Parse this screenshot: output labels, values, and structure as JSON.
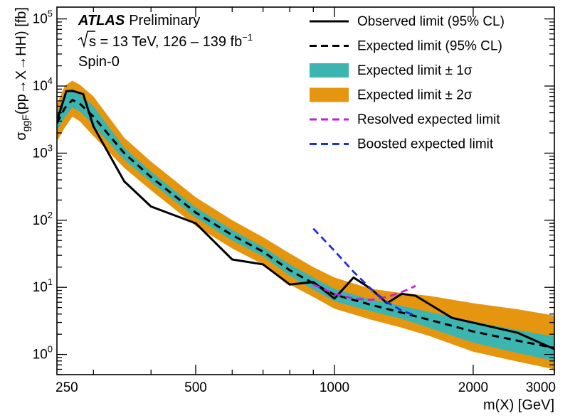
{
  "chart_data": {
    "type": "line",
    "xscale": "log",
    "yscale": "log",
    "xlim": [
      250,
      3000
    ],
    "ylim": [
      0.5,
      150000
    ],
    "xlabel": "m(X) [GeV]",
    "ylabel": "σggF(pp→X→HH) [fb]",
    "ylabel_parts": {
      "pre": "σ",
      "sub": "ggF",
      "post": "(pp→X→HH) [fb]"
    },
    "x_ticks": [
      250,
      500,
      1000,
      2000,
      3000
    ],
    "x_tick_labels": [
      "250",
      "500",
      "1000",
      "2000",
      "3000"
    ],
    "y_ticks": [
      1,
      10,
      100,
      1000,
      10000,
      100000
    ],
    "y_tick_labels": [
      {
        "base": "10",
        "exp": "0"
      },
      {
        "base": "10",
        "exp": "1"
      },
      {
        "base": "10",
        "exp": "2"
      },
      {
        "base": "10",
        "exp": "3"
      },
      {
        "base": "10",
        "exp": "4"
      },
      {
        "base": "10",
        "exp": "5"
      }
    ],
    "annotations": {
      "experiment": "ATLAS",
      "status": "Preliminary",
      "energy_text": "s = 13 TeV, 126 – 139 fb",
      "energy_sup": "−1",
      "model": "Spin-0"
    },
    "legend_position": "top-right",
    "legend": [
      {
        "label": "Observed limit (95% CL)",
        "style": "solid",
        "color": "#000000"
      },
      {
        "label": "Expected limit (95% CL)",
        "style": "dashed",
        "color": "#000000"
      },
      {
        "label": "Expected limit ± 1σ",
        "style": "band",
        "color": "#3cb4b0"
      },
      {
        "label": "Expected limit ± 2σ",
        "style": "band",
        "color": "#e5950e"
      },
      {
        "label": "Resolved expected limit",
        "style": "dashed",
        "color": "#c21fd9"
      },
      {
        "label": "Boosted expected limit",
        "style": "dashed",
        "color": "#1f2ee6"
      }
    ],
    "colors": {
      "band1": "#3cb4b0",
      "band2": "#e5950e",
      "observed": "#000000",
      "expected": "#000000",
      "resolved": "#c21fd9",
      "boosted": "#1f2ee6"
    },
    "band2": {
      "x": [
        250,
        260,
        270,
        280,
        300,
        350,
        400,
        500,
        600,
        700,
        800,
        900,
        1000,
        1200,
        1400,
        1600,
        2000,
        2500,
        3000
      ],
      "lo": [
        1500,
        2400,
        3500,
        3000,
        1800,
        600,
        280,
        82,
        38,
        22,
        11,
        7.2,
        4.8,
        3.3,
        2.5,
        1.9,
        1.1,
        0.78,
        0.6
      ],
      "hi": [
        5300,
        10000,
        12000,
        10500,
        7000,
        1700,
        750,
        220,
        100,
        56,
        32,
        20,
        14,
        9.5,
        8.2,
        7.5,
        5.8,
        4.7,
        3.8
      ]
    },
    "band1": {
      "x": [
        250,
        260,
        270,
        280,
        300,
        350,
        400,
        500,
        600,
        700,
        800,
        900,
        1000,
        1200,
        1400,
        1600,
        2000,
        2500,
        3000
      ],
      "lo": [
        2200,
        3400,
        4800,
        4200,
        2600,
        800,
        370,
        110,
        50,
        29,
        15,
        9.3,
        6.2,
        4.4,
        3.4,
        2.5,
        1.5,
        1.05,
        0.8
      ],
      "hi": [
        3800,
        7500,
        8500,
        7500,
        5000,
        1200,
        530,
        155,
        72,
        40,
        22,
        14,
        9.5,
        6.6,
        5.3,
        4.3,
        3.1,
        2.3,
        1.85
      ]
    },
    "series": [
      {
        "name": "Observed limit (95% CL)",
        "x": [
          250,
          262,
          270,
          285,
          300,
          350,
          400,
          500,
          600,
          700,
          800,
          900,
          1000,
          1100,
          1200,
          1300,
          1400,
          1500,
          1800,
          2500,
          3000
        ],
        "y": [
          3000,
          8400,
          8500,
          7600,
          2500,
          380,
          160,
          90,
          26,
          22,
          11,
          12,
          6.8,
          14,
          9.5,
          5.8,
          8,
          7.5,
          3.5,
          2.1,
          1.2
        ]
      },
      {
        "name": "Expected limit (95% CL)",
        "x": [
          250,
          260,
          270,
          280,
          300,
          350,
          400,
          500,
          600,
          700,
          800,
          900,
          1000,
          1200,
          1400,
          1600,
          2000,
          2500,
          3000
        ],
        "y": [
          2800,
          4700,
          6200,
          5500,
          3500,
          1000,
          440,
          130,
          60,
          34,
          18,
          11.5,
          7.8,
          5.5,
          4.2,
          3.3,
          2.2,
          1.6,
          1.25
        ]
      },
      {
        "name": "Resolved expected limit",
        "x": [
          900,
          1000,
          1100,
          1200,
          1300,
          1400,
          1500
        ],
        "y": [
          11,
          8,
          6.8,
          6.5,
          7.2,
          8.5,
          10.5
        ]
      },
      {
        "name": "Boosted expected limit",
        "x": [
          900,
          1000,
          1100,
          1200,
          1300,
          1400,
          1500
        ],
        "y": [
          75,
          35,
          17,
          9.5,
          6,
          4.5,
          3.8
        ]
      }
    ]
  }
}
